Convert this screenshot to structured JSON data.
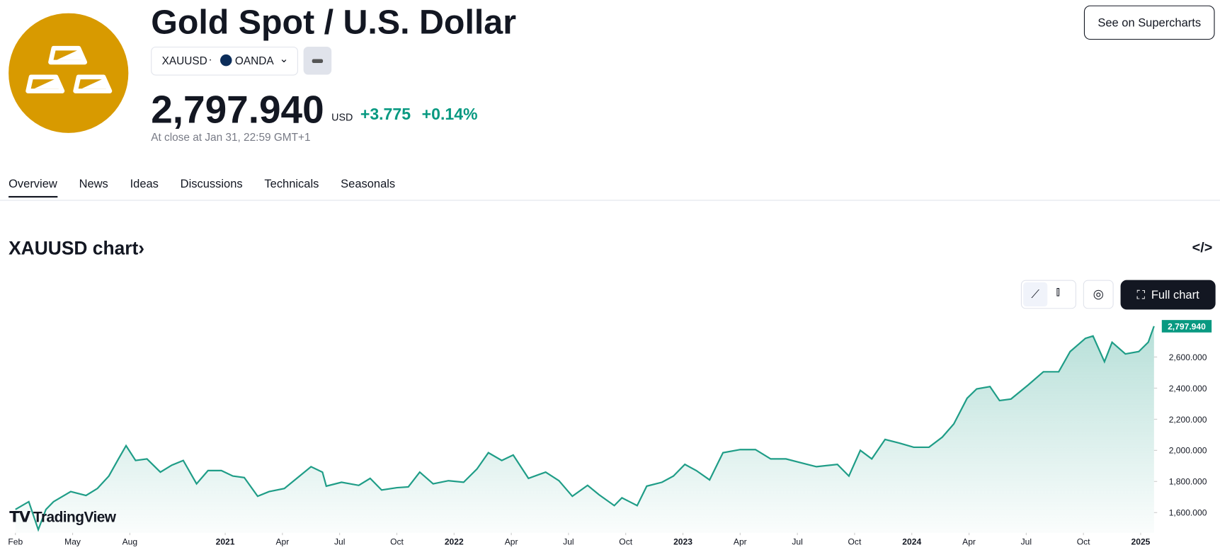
{
  "header": {
    "title": "Gold Spot / U.S. Dollar",
    "symbol": "XAUUSD",
    "exchange": "OANDA",
    "price": "2,797.940",
    "currency": "USD",
    "change": "+3.775",
    "change_percent": "+0.14%",
    "close_time": "At close at Jan 31, 22:59 GMT+1",
    "supercharts_button": "See on Supercharts"
  },
  "tabs": [
    "Overview",
    "News",
    "Ideas",
    "Discussions",
    "Technicals",
    "Seasonals"
  ],
  "chart_heading": "XAUUSD chart",
  "full_chart_button": "Full chart",
  "brand": "TradingView",
  "chart_data": {
    "type": "area",
    "color": "#1f9d87",
    "x": [
      0,
      0.7,
      1.2,
      1.6,
      2.0,
      2.9,
      3.7,
      4.3,
      4.9,
      5.4,
      5.8,
      6.3,
      6.9,
      7.6,
      8.2,
      8.8,
      9.5,
      10.1,
      10.8,
      11.4,
      12.0,
      12.7,
      13.3,
      14.1,
      14.9,
      15.5,
      16.1,
      16.3,
      17.1,
      18.0,
      18.6,
      19.2,
      20.0,
      20.6,
      21.2,
      21.9,
      22.7,
      23.5,
      24.2,
      24.8,
      25.5,
      26.1,
      26.9,
      27.8,
      28.5,
      29.2,
      30.0,
      30.6,
      31.4,
      31.8,
      32.6,
      33.1,
      33.9,
      34.5,
      35.1,
      35.7,
      36.4,
      37.1,
      38.0,
      38.8,
      39.6,
      40.4,
      41.2,
      42.0,
      43.1,
      43.7,
      44.3,
      44.9,
      45.6,
      46.4,
      47.1,
      47.9,
      48.6,
      49.2,
      49.9,
      50.4,
      51.1,
      51.6,
      52.2,
      53.1,
      53.9,
      54.7,
      55.3,
      56.1,
      56.5,
      57.1,
      57.5,
      58.2,
      58.9,
      59.4,
      59.7
    ],
    "values": [
      1620,
      1670,
      1490,
      1620,
      1670,
      1735,
      1710,
      1755,
      1835,
      1945,
      2030,
      1935,
      1945,
      1860,
      1905,
      1935,
      1785,
      1870,
      1870,
      1835,
      1825,
      1705,
      1735,
      1755,
      1835,
      1895,
      1860,
      1770,
      1795,
      1775,
      1820,
      1745,
      1760,
      1765,
      1860,
      1785,
      1805,
      1795,
      1880,
      1985,
      1935,
      1970,
      1820,
      1860,
      1805,
      1705,
      1775,
      1715,
      1645,
      1695,
      1645,
      1770,
      1795,
      1835,
      1910,
      1870,
      1810,
      1985,
      2005,
      2005,
      1945,
      1945,
      1920,
      1895,
      1910,
      1835,
      2000,
      1945,
      2070,
      2045,
      2020,
      2020,
      2085,
      2170,
      2335,
      2395,
      2410,
      2320,
      2330,
      2420,
      2505,
      2505,
      2635,
      2720,
      2735,
      2570,
      2695,
      2620,
      2635,
      2695,
      2797.94
    ],
    "xlim": [
      -0.4,
      59.7
    ],
    "xticks": [
      {
        "value": 0,
        "label": "Feb"
      },
      {
        "value": 3,
        "label": "May"
      },
      {
        "value": 6,
        "label": "Aug"
      },
      {
        "value": 11,
        "label": "2021"
      },
      {
        "value": 14,
        "label": "Apr"
      },
      {
        "value": 17,
        "label": "Jul"
      },
      {
        "value": 20,
        "label": "Oct"
      },
      {
        "value": 23,
        "label": "2022"
      },
      {
        "value": 26,
        "label": "Apr"
      },
      {
        "value": 29,
        "label": "Jul"
      },
      {
        "value": 32,
        "label": "Oct"
      },
      {
        "value": 35,
        "label": "2023"
      },
      {
        "value": 38,
        "label": "Apr"
      },
      {
        "value": 41,
        "label": "Jul"
      },
      {
        "value": 44,
        "label": "Oct"
      },
      {
        "value": 47,
        "label": "2024"
      },
      {
        "value": 50,
        "label": "Apr"
      },
      {
        "value": 53,
        "label": "Jul"
      },
      {
        "value": 56,
        "label": "Oct"
      },
      {
        "value": 59,
        "label": "2025"
      }
    ],
    "ylim": [
      1470,
      2850
    ],
    "yticks": [
      {
        "value": 1600,
        "label": "1,600.000"
      },
      {
        "value": 1800,
        "label": "1,800.000"
      },
      {
        "value": 2000,
        "label": "2,000.000"
      },
      {
        "value": 2200,
        "label": "2,200.000"
      },
      {
        "value": 2400,
        "label": "2,400.000"
      },
      {
        "value": 2600,
        "label": "2,600.000"
      }
    ]
  }
}
